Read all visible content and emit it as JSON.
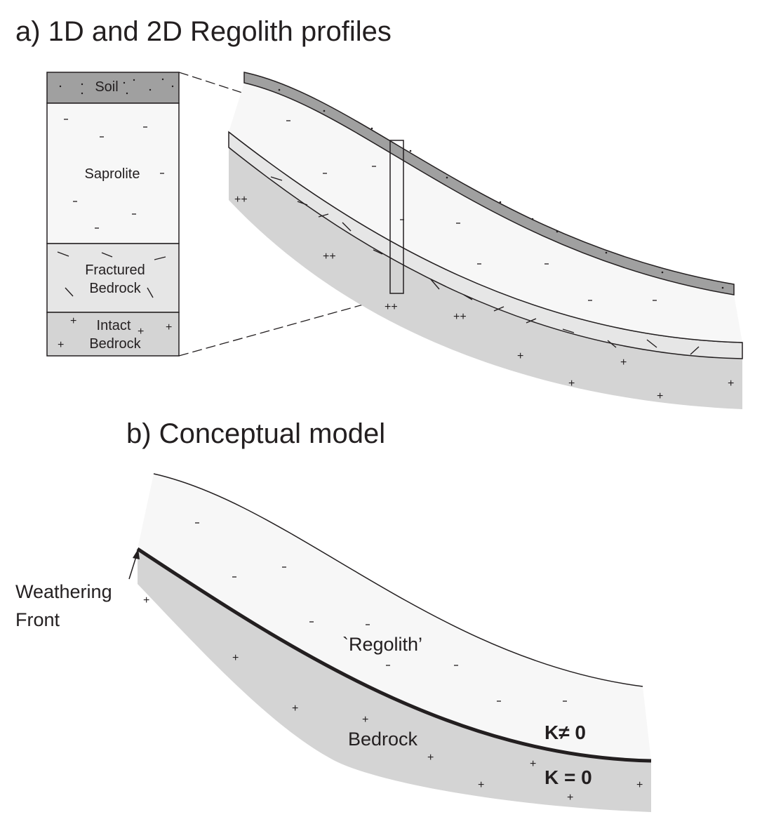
{
  "panel_a": {
    "title": "a) 1D and 2D Regolith profiles",
    "column_labels": {
      "soil": "Soil",
      "saprolite": "Saprolite",
      "fractured_1": "Fractured",
      "fractured_2": "Bedrock",
      "intact_1": "Intact",
      "intact_2": "Bedrock"
    },
    "colors": {
      "soil": "#a0a0a0",
      "saprolite": "#f7f7f7",
      "fractured": "#e6e6e6",
      "bedrock": "#d4d4d4",
      "line": "#231f20"
    }
  },
  "panel_b": {
    "title": "b) Conceptual model",
    "weathering_front_1": "Weathering",
    "weathering_front_2": "Front",
    "regolith": "`Regolith’",
    "bedrock": "Bedrock",
    "k_nonzero": "K≠ 0",
    "k_zero": "K = 0"
  }
}
